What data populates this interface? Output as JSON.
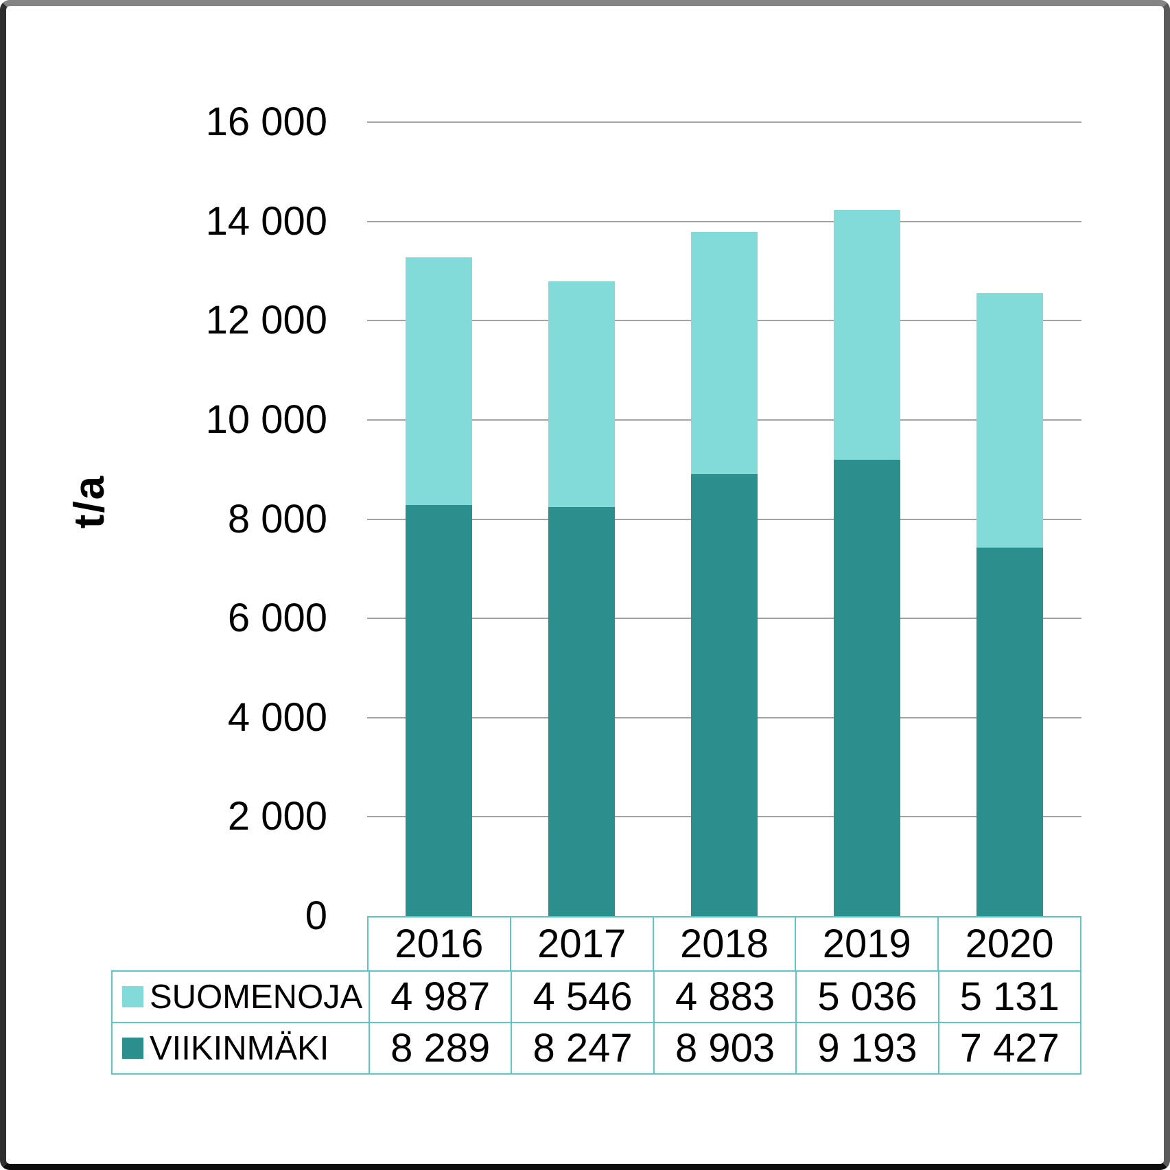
{
  "y_axis": {
    "title": "t/a",
    "ticks": [
      {
        "value": 0,
        "label": "0"
      },
      {
        "value": 2000,
        "label": "2 000"
      },
      {
        "value": 4000,
        "label": "4 000"
      },
      {
        "value": 6000,
        "label": "6 000"
      },
      {
        "value": 8000,
        "label": "8 000"
      },
      {
        "value": 10000,
        "label": "10 000"
      },
      {
        "value": 12000,
        "label": "12 000"
      },
      {
        "value": 14000,
        "label": "14 000"
      },
      {
        "value": 16000,
        "label": "16 000"
      }
    ]
  },
  "chart_data": {
    "type": "bar",
    "stacked": true,
    "title": "",
    "xlabel": "",
    "ylabel": "t/a",
    "ylim": [
      0,
      16000
    ],
    "ytick_step": 2000,
    "grid": true,
    "legend_position": "table-left",
    "categories": [
      "2016",
      "2017",
      "2018",
      "2019",
      "2020"
    ],
    "series": [
      {
        "name": "SUOMENOJA",
        "color": "#82dbd9",
        "stack_order": "top",
        "values": [
          4987,
          4546,
          4883,
          5036,
          5131
        ],
        "labels": [
          "4 987",
          "4 546",
          "4 883",
          "5 036",
          "5 131"
        ]
      },
      {
        "name": "VIIKINMÄKI",
        "color": "#2b8f8d",
        "stack_order": "bottom",
        "values": [
          8289,
          8247,
          8903,
          9193,
          7427
        ],
        "labels": [
          "8 289",
          "8 247",
          "8 903",
          "9 193",
          "7 427"
        ]
      }
    ]
  },
  "colors": {
    "suomenoja": "#82dbd9",
    "viikinmaki": "#2b8f8d",
    "table_border": "#5fc6c6",
    "gridline": "#a3a3a3",
    "text": "#000000"
  }
}
